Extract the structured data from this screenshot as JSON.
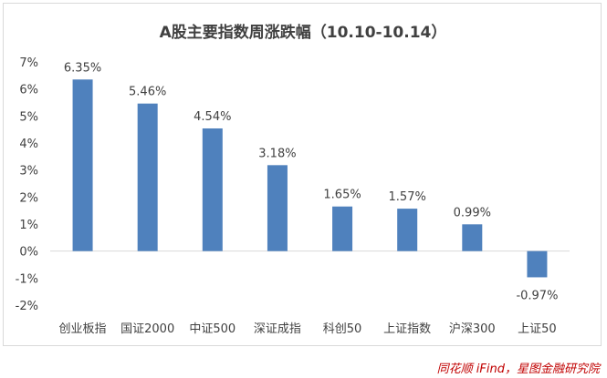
{
  "chart_data": {
    "type": "bar",
    "title": "A股主要指数周涨跌幅（10.10-10.14）",
    "categories": [
      "创业板指",
      "国证2000",
      "中证500",
      "深证成指",
      "科创50",
      "上证指数",
      "沪深300",
      "上证50"
    ],
    "values": [
      6.35,
      5.46,
      4.54,
      3.18,
      1.65,
      1.57,
      0.99,
      -0.97
    ],
    "data_labels": [
      "6.35%",
      "5.46%",
      "4.54%",
      "3.18%",
      "1.65%",
      "1.57%",
      "0.99%",
      "-0.97%"
    ],
    "yticks": [
      7,
      6,
      5,
      4,
      3,
      2,
      1,
      0,
      -1,
      -2
    ],
    "ytick_labels": [
      "7%",
      "6%",
      "5%",
      "4%",
      "3%",
      "2%",
      "1%",
      "0%",
      "-1%",
      "-2%"
    ],
    "ylim": [
      -2,
      7
    ],
    "xlabel": "",
    "ylabel": "",
    "grid": false,
    "bar_color": "#4f81bd"
  },
  "source": "同花顺 iFind，星图金融研究院"
}
